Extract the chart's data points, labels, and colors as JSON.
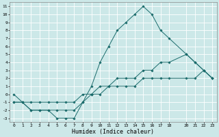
{
  "xlabel": "Humidex (Indice chaleur)",
  "bg_color": "#cce8e8",
  "grid_color": "#ffffff",
  "line_color": "#1a6b6b",
  "xlim": [
    -0.5,
    23.5
  ],
  "ylim": [
    -3.5,
    11.5
  ],
  "xticks": [
    0,
    1,
    2,
    3,
    4,
    5,
    6,
    7,
    8,
    9,
    10,
    11,
    12,
    13,
    14,
    15,
    16,
    17,
    18,
    20,
    21,
    22,
    23
  ],
  "yticks": [
    -3,
    -2,
    -1,
    0,
    1,
    2,
    3,
    4,
    5,
    6,
    7,
    8,
    9,
    10,
    11
  ],
  "line1_x": [
    0,
    1,
    2,
    3,
    4,
    5,
    6,
    7,
    8,
    9,
    10,
    11,
    12,
    13,
    14,
    15,
    16,
    17,
    18,
    20,
    21,
    22,
    23
  ],
  "line1_y": [
    0,
    -1,
    -2,
    -2,
    -2,
    -3,
    -3,
    -3,
    -1,
    1,
    4,
    6,
    8,
    9,
    10,
    11,
    10,
    8,
    7,
    5,
    4,
    3,
    2
  ],
  "line2_x": [
    0,
    1,
    2,
    3,
    4,
    5,
    6,
    7,
    8,
    9,
    10,
    11,
    12,
    13,
    14,
    15,
    16,
    17,
    18,
    20,
    21,
    22,
    23
  ],
  "line2_y": [
    -1,
    -1,
    -2,
    -2,
    -2,
    -2,
    -2,
    -2,
    -1,
    0,
    1,
    1,
    2,
    2,
    2,
    3,
    3,
    4,
    4,
    5,
    4,
    3,
    2
  ],
  "line3_x": [
    0,
    1,
    2,
    3,
    4,
    5,
    6,
    7,
    8,
    9,
    10,
    11,
    12,
    13,
    14,
    15,
    16,
    17,
    18,
    20,
    21,
    22,
    23
  ],
  "line3_y": [
    -1,
    -1,
    -1,
    -1,
    -1,
    -1,
    -1,
    -1,
    0,
    0,
    0,
    1,
    1,
    1,
    1,
    2,
    2,
    2,
    2,
    2,
    2,
    3,
    2
  ],
  "xlabel_fontsize": 6,
  "tick_fontsize": 4.5,
  "lw": 0.7,
  "ms": 1.8
}
